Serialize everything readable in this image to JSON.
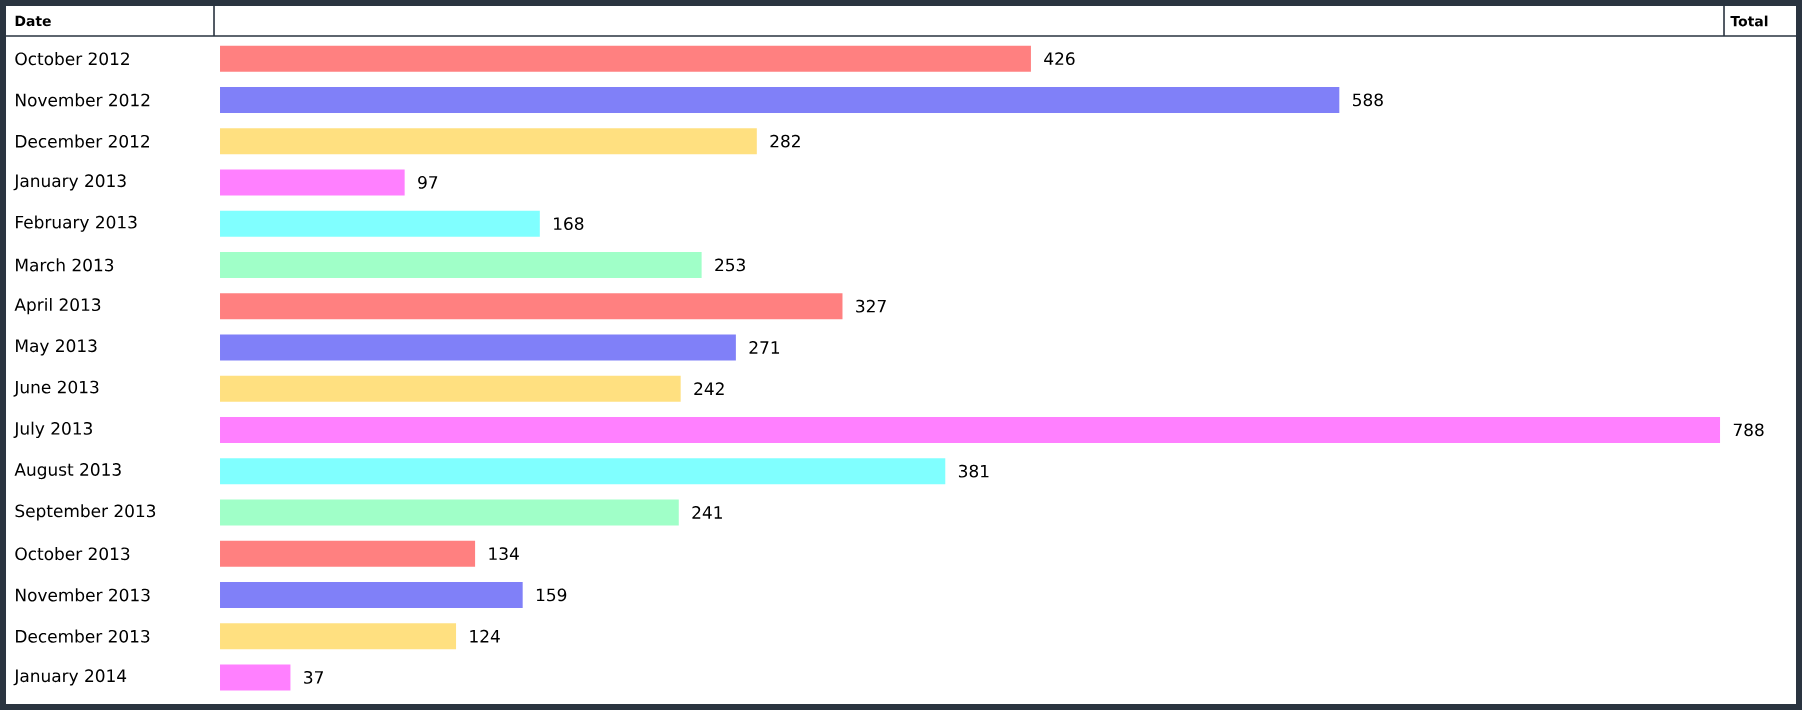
{
  "chart_data": {
    "type": "bar",
    "orientation": "horizontal",
    "ylabel": "Date",
    "xlabel": "Total",
    "categories": [
      "October 2012",
      "November 2012",
      "December 2012",
      "January 2013",
      "February 2013",
      "March 2013",
      "April 2013",
      "May 2013",
      "June 2013",
      "July 2013",
      "August 2013",
      "September 2013",
      "October 2013",
      "November 2013",
      "December 2013",
      "January 2014"
    ],
    "values": [
      426,
      588,
      282,
      97,
      168,
      253,
      327,
      271,
      242,
      788,
      381,
      241,
      134,
      159,
      124,
      37
    ],
    "colors": [
      "#ff8080",
      "#8080f8",
      "#ffe080",
      "#ff80ff",
      "#80ffff",
      "#a0ffc8",
      "#ff8080",
      "#8080f8",
      "#ffe080",
      "#ff80ff",
      "#80ffff",
      "#a0ffc8",
      "#ff8080",
      "#8080f8",
      "#ffe080",
      "#ff80ff"
    ],
    "data_labels": true
  }
}
